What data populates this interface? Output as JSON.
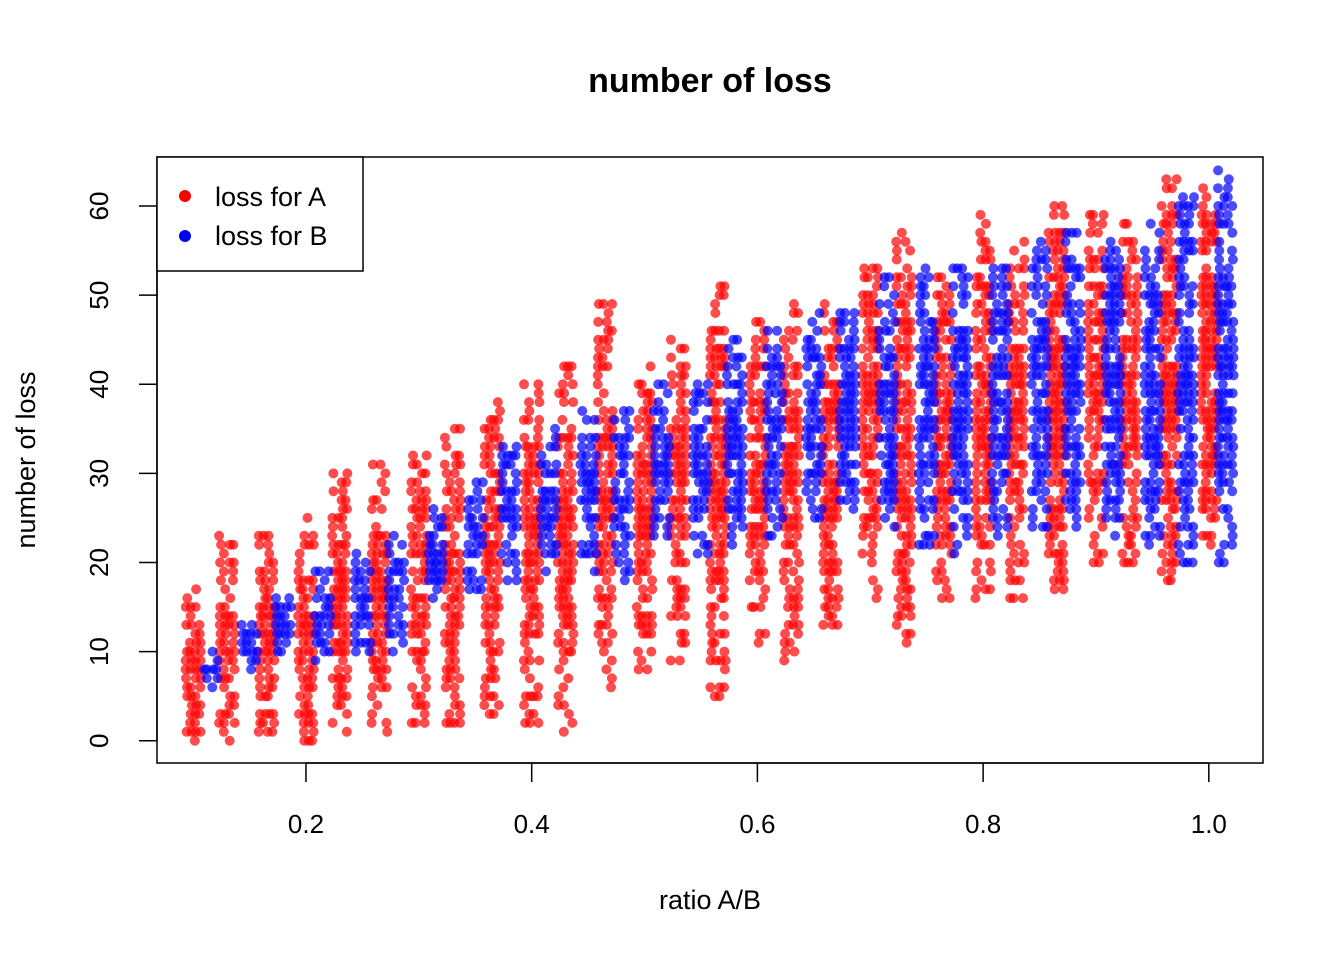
{
  "chart_data": {
    "type": "scatter",
    "title": "number of loss",
    "xlabel": "ratio A/B",
    "ylabel": "number of loss",
    "xlim": [
      0.068,
      1.048
    ],
    "ylim": [
      -2.5,
      65.5
    ],
    "xticks": [
      {
        "value": 0.2,
        "label": "0.2"
      },
      {
        "value": 0.4,
        "label": "0.4"
      },
      {
        "value": 0.6,
        "label": "0.6"
      },
      {
        "value": 0.8,
        "label": "0.8"
      },
      {
        "value": 1.0,
        "label": "1.0"
      }
    ],
    "yticks": [
      {
        "value": 0,
        "label": "0"
      },
      {
        "value": 10,
        "label": "10"
      },
      {
        "value": 20,
        "label": "20"
      },
      {
        "value": 30,
        "label": "30"
      },
      {
        "value": 40,
        "label": "40"
      },
      {
        "value": 50,
        "label": "50"
      },
      {
        "value": 60,
        "label": "60"
      }
    ],
    "grid": false,
    "legend_position": "top-left",
    "x_columns": [
      0.1,
      0.115,
      0.13,
      0.15,
      0.165,
      0.18,
      0.2,
      0.215,
      0.23,
      0.25,
      0.265,
      0.28,
      0.3,
      0.315,
      0.33,
      0.35,
      0.365,
      0.38,
      0.4,
      0.415,
      0.43,
      0.45,
      0.465,
      0.48,
      0.5,
      0.515,
      0.53,
      0.55,
      0.565,
      0.58,
      0.6,
      0.615,
      0.63,
      0.65,
      0.665,
      0.68,
      0.7,
      0.715,
      0.73,
      0.75,
      0.765,
      0.78,
      0.8,
      0.815,
      0.83,
      0.85,
      0.865,
      0.88,
      0.9,
      0.915,
      0.93,
      0.95,
      0.965,
      0.98,
      1.0,
      1.015,
      1.02
    ],
    "series": [
      {
        "name": "loss for A",
        "color": "#ff0000",
        "column_ranges": [
          {
            "x": 0.1,
            "y_min": 0,
            "y_max": 17
          },
          {
            "x": 0.13,
            "y_min": 0,
            "y_max": 23
          },
          {
            "x": 0.165,
            "y_min": 0,
            "y_max": 23
          },
          {
            "x": 0.2,
            "y_min": 0,
            "y_max": 25
          },
          {
            "x": 0.23,
            "y_min": 1,
            "y_max": 30
          },
          {
            "x": 0.265,
            "y_min": 1,
            "y_max": 31
          },
          {
            "x": 0.3,
            "y_min": 1,
            "y_max": 32
          },
          {
            "x": 0.33,
            "y_min": 2,
            "y_max": 35
          },
          {
            "x": 0.365,
            "y_min": 3,
            "y_max": 38
          },
          {
            "x": 0.4,
            "y_min": 2,
            "y_max": 40
          },
          {
            "x": 0.43,
            "y_min": 1,
            "y_max": 42
          },
          {
            "x": 0.465,
            "y_min": 6,
            "y_max": 49
          },
          {
            "x": 0.5,
            "y_min": 7,
            "y_max": 44
          },
          {
            "x": 0.53,
            "y_min": 9,
            "y_max": 45
          },
          {
            "x": 0.565,
            "y_min": 5,
            "y_max": 51
          },
          {
            "x": 0.6,
            "y_min": 11,
            "y_max": 47
          },
          {
            "x": 0.63,
            "y_min": 9,
            "y_max": 49
          },
          {
            "x": 0.665,
            "y_min": 12,
            "y_max": 49
          },
          {
            "x": 0.7,
            "y_min": 16,
            "y_max": 53
          },
          {
            "x": 0.73,
            "y_min": 11,
            "y_max": 57
          },
          {
            "x": 0.765,
            "y_min": 16,
            "y_max": 53
          },
          {
            "x": 0.8,
            "y_min": 16,
            "y_max": 59
          },
          {
            "x": 0.83,
            "y_min": 16,
            "y_max": 56
          },
          {
            "x": 0.865,
            "y_min": 17,
            "y_max": 60
          },
          {
            "x": 0.9,
            "y_min": 20,
            "y_max": 59
          },
          {
            "x": 0.93,
            "y_min": 20,
            "y_max": 58
          },
          {
            "x": 0.965,
            "y_min": 18,
            "y_max": 63
          },
          {
            "x": 1.0,
            "y_min": 22,
            "y_max": 62
          }
        ]
      },
      {
        "name": "loss for B",
        "color": "#0000ff",
        "column_ranges": [
          {
            "x": 0.115,
            "y_min": 6,
            "y_max": 10
          },
          {
            "x": 0.15,
            "y_min": 8,
            "y_max": 13
          },
          {
            "x": 0.18,
            "y_min": 10,
            "y_max": 16
          },
          {
            "x": 0.215,
            "y_min": 9,
            "y_max": 19
          },
          {
            "x": 0.25,
            "y_min": 10,
            "y_max": 21
          },
          {
            "x": 0.28,
            "y_min": 10,
            "y_max": 23
          },
          {
            "x": 0.315,
            "y_min": 16,
            "y_max": 26
          },
          {
            "x": 0.35,
            "y_min": 17,
            "y_max": 29
          },
          {
            "x": 0.38,
            "y_min": 18,
            "y_max": 33
          },
          {
            "x": 0.415,
            "y_min": 19,
            "y_max": 35
          },
          {
            "x": 0.45,
            "y_min": 19,
            "y_max": 37
          },
          {
            "x": 0.48,
            "y_min": 17,
            "y_max": 37
          },
          {
            "x": 0.515,
            "y_min": 23,
            "y_max": 41
          },
          {
            "x": 0.55,
            "y_min": 21,
            "y_max": 40
          },
          {
            "x": 0.58,
            "y_min": 21,
            "y_max": 45
          },
          {
            "x": 0.615,
            "y_min": 23,
            "y_max": 46
          },
          {
            "x": 0.65,
            "y_min": 25,
            "y_max": 48
          },
          {
            "x": 0.68,
            "y_min": 26,
            "y_max": 48
          },
          {
            "x": 0.715,
            "y_min": 24,
            "y_max": 52
          },
          {
            "x": 0.75,
            "y_min": 21,
            "y_max": 53
          },
          {
            "x": 0.78,
            "y_min": 21,
            "y_max": 53
          },
          {
            "x": 0.815,
            "y_min": 23,
            "y_max": 53
          },
          {
            "x": 0.85,
            "y_min": 24,
            "y_max": 56
          },
          {
            "x": 0.88,
            "y_min": 24,
            "y_max": 57
          },
          {
            "x": 0.915,
            "y_min": 23,
            "y_max": 57
          },
          {
            "x": 0.95,
            "y_min": 22,
            "y_max": 58
          },
          {
            "x": 0.98,
            "y_min": 20,
            "y_max": 63
          },
          {
            "x": 1.015,
            "y_min": 20,
            "y_max": 64
          }
        ]
      }
    ]
  },
  "legend": {
    "items": [
      {
        "label": "loss for A",
        "color": "#ff0000"
      },
      {
        "label": "loss for B",
        "color": "#0000ff"
      }
    ]
  }
}
